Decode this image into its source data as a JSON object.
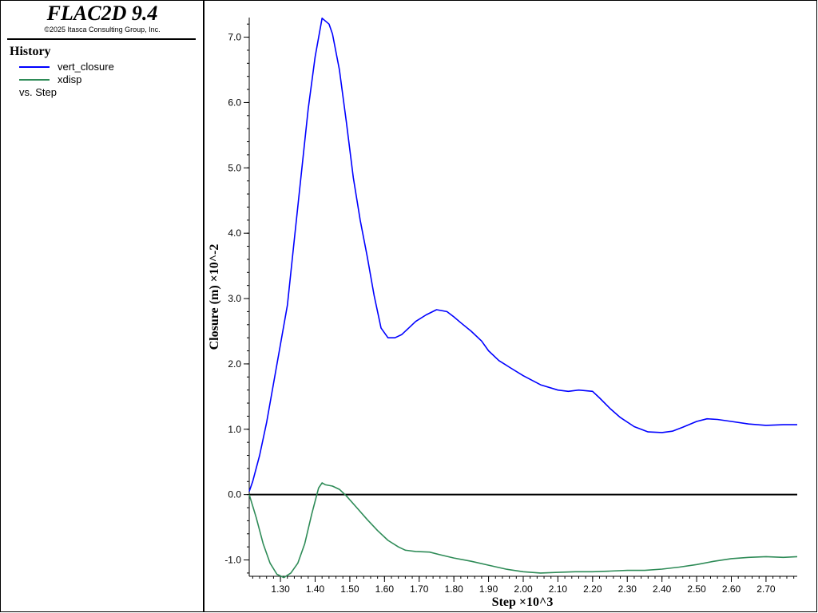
{
  "app": {
    "title": "FLAC2D 9.4",
    "copyright": "©2025 Itasca Consulting Group, Inc."
  },
  "legend": {
    "heading": "History",
    "items": [
      {
        "label": "vert_closure",
        "color": "#0000ff"
      },
      {
        "label": "xdisp",
        "color": "#2e8b57"
      }
    ],
    "vs_label": "vs. Step"
  },
  "chart_data": {
    "type": "line",
    "xlabel": "Step ×10^3",
    "ylabel": "Closure (m) ×10^-2",
    "xlim": [
      1.21,
      2.79
    ],
    "ylim": [
      -1.25,
      7.3
    ],
    "xticks": [
      1.3,
      1.4,
      1.5,
      1.6,
      1.7,
      1.8,
      1.9,
      2.0,
      2.1,
      2.2,
      2.3,
      2.4,
      2.5,
      2.6,
      2.7
    ],
    "xtick_labels": [
      "1.30",
      "1.40",
      "1.50",
      "1.60",
      "1.70",
      "1.80",
      "1.90",
      "2.00",
      "2.10",
      "2.20",
      "2.30",
      "2.40",
      "2.50",
      "2.60",
      "2.70"
    ],
    "yticks": [
      -1.0,
      0.0,
      1.0,
      2.0,
      3.0,
      4.0,
      5.0,
      6.0,
      7.0
    ],
    "ytick_labels": [
      "-1.0",
      "0.0",
      "1.0",
      "2.0",
      "3.0",
      "4.0",
      "5.0",
      "6.0",
      "7.0"
    ],
    "zero_line": true,
    "grid": false,
    "series": [
      {
        "name": "vert_closure",
        "color": "#0000ff",
        "x": [
          1.21,
          1.22,
          1.24,
          1.26,
          1.28,
          1.3,
          1.32,
          1.34,
          1.36,
          1.38,
          1.4,
          1.42,
          1.44,
          1.45,
          1.47,
          1.49,
          1.51,
          1.53,
          1.55,
          1.57,
          1.59,
          1.61,
          1.63,
          1.65,
          1.67,
          1.69,
          1.72,
          1.75,
          1.78,
          1.8,
          1.82,
          1.85,
          1.88,
          1.9,
          1.93,
          1.96,
          2.0,
          2.05,
          2.1,
          2.13,
          2.16,
          2.2,
          2.22,
          2.25,
          2.28,
          2.32,
          2.36,
          2.4,
          2.43,
          2.46,
          2.5,
          2.53,
          2.56,
          2.6,
          2.65,
          2.7,
          2.75,
          2.79
        ],
        "y": [
          0.05,
          0.2,
          0.6,
          1.1,
          1.7,
          2.3,
          2.9,
          3.9,
          4.9,
          5.9,
          6.7,
          7.29,
          7.2,
          7.05,
          6.5,
          5.7,
          4.85,
          4.2,
          3.65,
          3.05,
          2.55,
          2.4,
          2.4,
          2.45,
          2.55,
          2.65,
          2.75,
          2.83,
          2.8,
          2.72,
          2.63,
          2.5,
          2.35,
          2.2,
          2.05,
          1.95,
          1.82,
          1.68,
          1.6,
          1.58,
          1.6,
          1.58,
          1.48,
          1.32,
          1.18,
          1.04,
          0.96,
          0.95,
          0.97,
          1.03,
          1.12,
          1.16,
          1.15,
          1.12,
          1.08,
          1.06,
          1.07,
          1.07
        ]
      },
      {
        "name": "xdisp",
        "color": "#2e8b57",
        "x": [
          1.21,
          1.23,
          1.25,
          1.27,
          1.29,
          1.31,
          1.33,
          1.35,
          1.37,
          1.39,
          1.41,
          1.42,
          1.43,
          1.45,
          1.47,
          1.49,
          1.52,
          1.55,
          1.58,
          1.61,
          1.64,
          1.66,
          1.69,
          1.73,
          1.76,
          1.8,
          1.85,
          1.9,
          1.95,
          2.0,
          2.05,
          2.1,
          2.15,
          2.2,
          2.25,
          2.3,
          2.35,
          2.4,
          2.45,
          2.5,
          2.55,
          2.6,
          2.65,
          2.7,
          2.75,
          2.79
        ],
        "y": [
          0.0,
          -0.35,
          -0.75,
          -1.05,
          -1.22,
          -1.27,
          -1.2,
          -1.05,
          -0.75,
          -0.3,
          0.1,
          0.18,
          0.15,
          0.13,
          0.08,
          -0.02,
          -0.2,
          -0.38,
          -0.55,
          -0.7,
          -0.8,
          -0.85,
          -0.87,
          -0.88,
          -0.92,
          -0.97,
          -1.02,
          -1.08,
          -1.14,
          -1.18,
          -1.2,
          -1.19,
          -1.18,
          -1.18,
          -1.17,
          -1.16,
          -1.16,
          -1.14,
          -1.11,
          -1.07,
          -1.02,
          -0.98,
          -0.96,
          -0.95,
          -0.96,
          -0.95
        ]
      }
    ]
  }
}
